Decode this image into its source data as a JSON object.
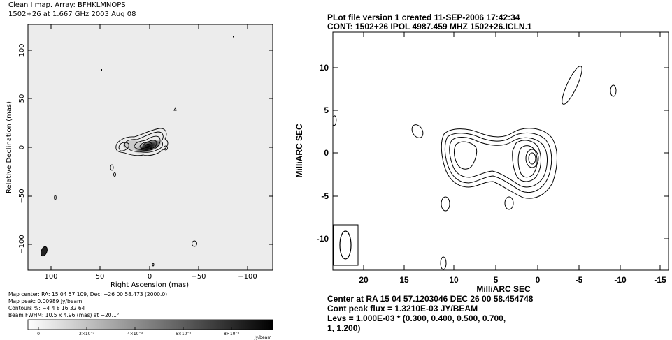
{
  "left": {
    "title_line1": "Clean I map.  Array:  BFHKLMNOPS",
    "title_line2": "1502+26 at 1.667 GHz 2003 Aug 08",
    "xlabel": "Right Ascension  (mas)",
    "ylabel": "Relative Declination  (mas)",
    "xticks": [
      "100",
      "50",
      "0",
      "−50",
      "−100"
    ],
    "yticks": [
      "100",
      "50",
      "0",
      "−50",
      "−100"
    ],
    "info": [
      "Map center:  RA: 15 04 57.109,  Dec: +26 00 58.473 (2000.0)",
      "Map peak: 0.00989 Jy/beam",
      "Contours %: −4 4 8 16 32 64",
      "Beam FWHM: 10.5 x 4.96 (mas) at −20.1°"
    ],
    "colorbar_ticks": [
      "0",
      "2×10⁻³",
      "4×10⁻³",
      "6×10⁻³",
      "8×10⁻³"
    ],
    "colorbar_unit": "Jy/beam"
  },
  "right": {
    "title_line1": "PLot file version 1  created 11-SEP-2006 17:42:34",
    "title_line2": "CONT: 1502+26  IPOL  4987.459 MHZ  1502+26.ICLN.1",
    "xlabel": "MilliARC SEC",
    "ylabel": "MilliARC SEC",
    "xticks": [
      "20",
      "15",
      "10",
      "5",
      "0",
      "-5",
      "-10",
      "-15"
    ],
    "yticks": [
      "10",
      "5",
      "0",
      "-5",
      "-10"
    ],
    "info": [
      "Center at RA 15 04 57.1203046  DEC 26 00 58.454748",
      "Cont peak flux =  1.3210E-03 JY/BEAM",
      "Levs = 1.000E-03 * (0.300, 0.400, 0.500, 0.700,",
      "1, 1.200)"
    ]
  },
  "chart_data": [
    {
      "type": "heatmap",
      "title": "Clean I map.  Array:  BFHKLMNOPS",
      "subtitle": "1502+26 at 1.667 GHz 2003 Aug 08",
      "xlabel": "Right Ascension  (mas)",
      "ylabel": "Relative Declination  (mas)",
      "xlim": [
        130,
        -130
      ],
      "ylim": [
        -130,
        130
      ],
      "map_peak_jy_per_beam": 0.00989,
      "contour_levels_percent": [
        -4,
        4,
        8,
        16,
        32,
        64
      ],
      "beam_mas": [
        10.5,
        4.96
      ],
      "beam_pa_deg": -20.1,
      "colorbar_range": [
        0,
        0.01
      ],
      "colorbar_unit": "Jy/beam"
    },
    {
      "type": "heatmap",
      "title": "PLot file version 1  created 11-SEP-2006 17:42:34",
      "subtitle": "CONT: 1502+26  IPOL  4987.459 MHZ  1502+26.ICLN.1",
      "xlabel": "MilliARC SEC",
      "ylabel": "MilliARC SEC",
      "xlim": [
        25,
        -16
      ],
      "ylim": [
        -14,
        14
      ],
      "peak_flux_jy_per_beam": 0.001321,
      "contour_base": 0.001,
      "contour_multipliers": [
        0.3,
        0.4,
        0.5,
        0.7,
        1,
        1.2
      ]
    }
  ]
}
